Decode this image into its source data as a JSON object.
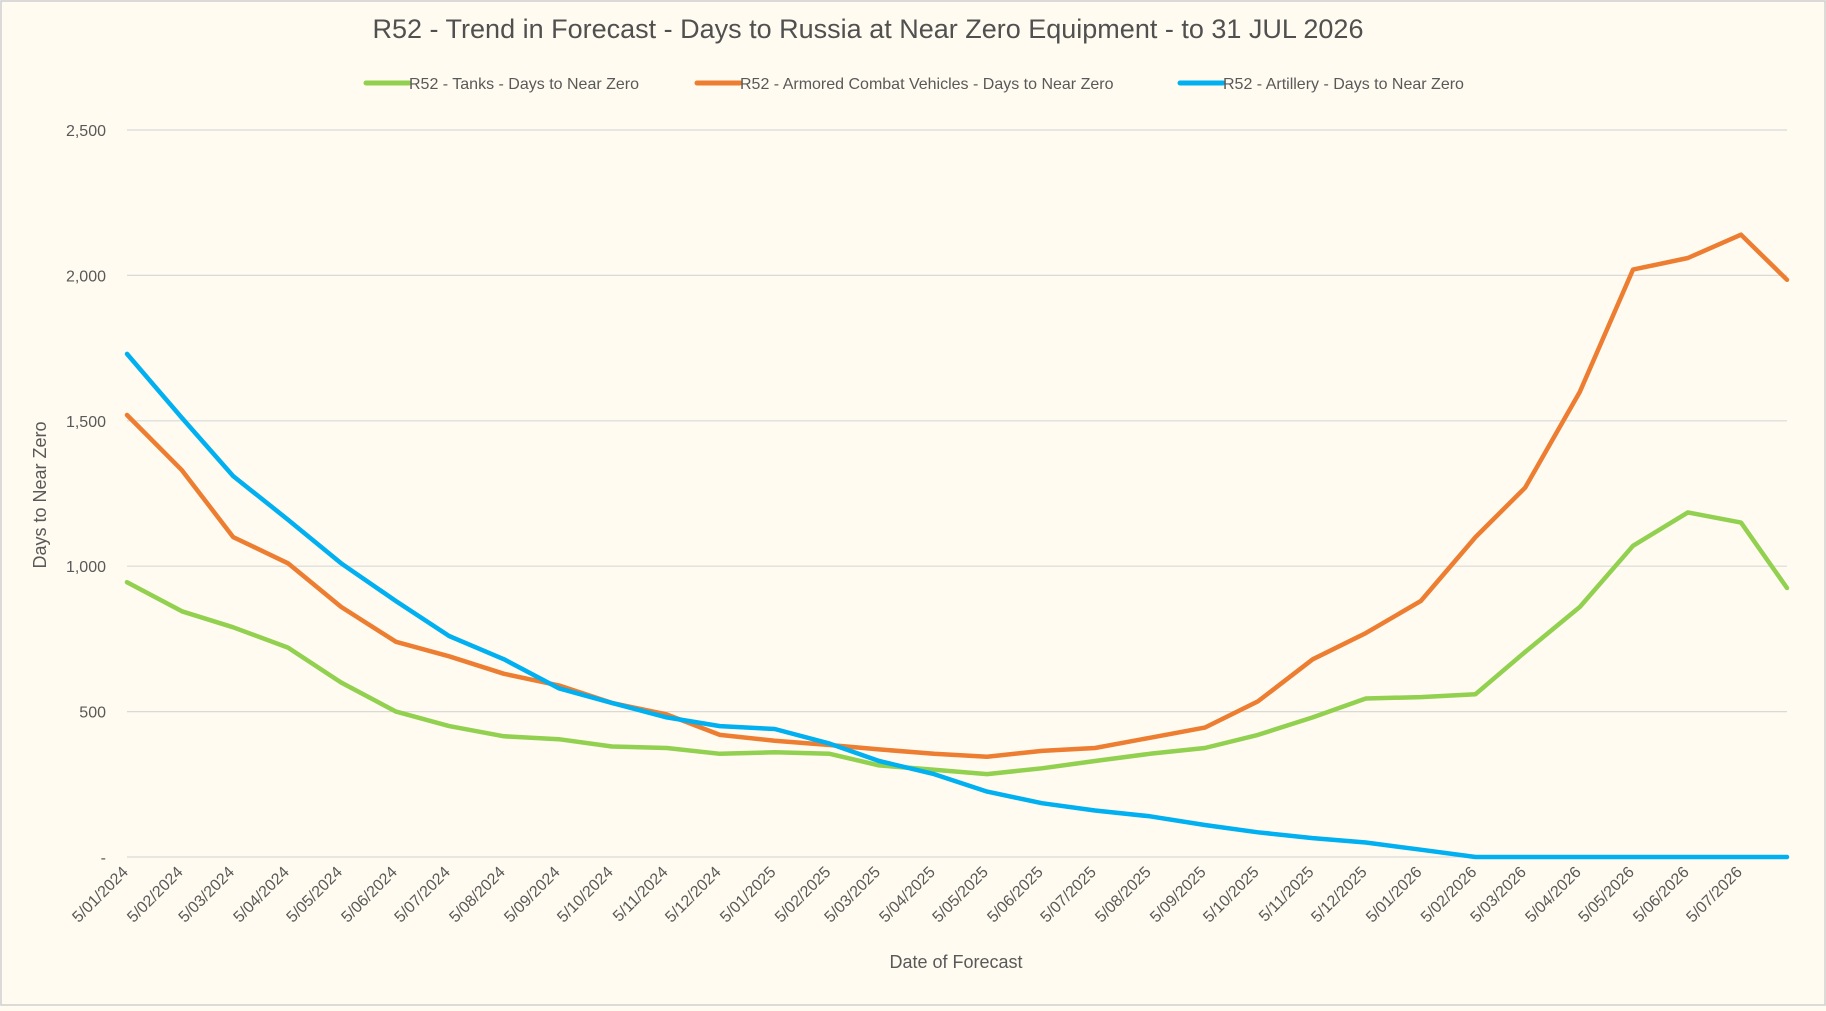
{
  "chart_data": {
    "type": "line",
    "title": "R52 - Trend in Forecast - Days to Russia at Near Zero Equipment - to 31 JUL 2026",
    "xlabel": "Date of Forecast",
    "ylabel": "Days to Near Zero",
    "ylim": [
      0,
      2500
    ],
    "yticks": [
      {
        "value": 0,
        "label": "-"
      },
      {
        "value": 500,
        "label": "500"
      },
      {
        "value": 1000,
        "label": "1,000"
      },
      {
        "value": 1500,
        "label": "1,500"
      },
      {
        "value": 2000,
        "label": "2,000"
      },
      {
        "value": 2500,
        "label": "2,500"
      }
    ],
    "x_tick_labels": [
      "5/01/2024",
      "5/02/2024",
      "5/03/2024",
      "5/04/2024",
      "5/05/2024",
      "5/06/2024",
      "5/07/2024",
      "5/08/2024",
      "5/09/2024",
      "5/10/2024",
      "5/11/2024",
      "5/12/2024",
      "5/01/2025",
      "5/02/2025",
      "5/03/2025",
      "5/04/2025",
      "5/05/2025",
      "5/06/2025",
      "5/07/2025",
      "5/08/2025",
      "5/09/2025",
      "5/10/2025",
      "5/11/2025",
      "5/12/2025",
      "5/01/2026",
      "5/02/2026",
      "5/03/2026",
      "5/04/2026",
      "5/05/2026",
      "5/06/2026",
      "5/07/2026"
    ],
    "x": [
      "2024-01-05",
      "2024-02-05",
      "2024-03-05",
      "2024-04-05",
      "2024-05-05",
      "2024-06-05",
      "2024-07-05",
      "2024-08-05",
      "2024-09-05",
      "2024-10-05",
      "2024-11-05",
      "2024-12-05",
      "2025-01-05",
      "2025-02-05",
      "2025-03-05",
      "2025-04-05",
      "2025-05-05",
      "2025-06-05",
      "2025-07-05",
      "2025-08-05",
      "2025-09-05",
      "2025-10-05",
      "2025-11-05",
      "2025-12-05",
      "2026-01-05",
      "2026-02-05",
      "2026-03-05",
      "2026-04-05",
      "2026-05-05",
      "2026-06-05",
      "2026-07-05",
      "2026-07-31"
    ],
    "grid": true,
    "legend_position": "top",
    "series": [
      {
        "name": "R52 - Tanks - Days to Near Zero",
        "color": "#92d050",
        "values": [
          945,
          845,
          790,
          720,
          600,
          500,
          450,
          415,
          405,
          380,
          375,
          355,
          360,
          355,
          315,
          300,
          285,
          305,
          330,
          355,
          375,
          420,
          480,
          545,
          550,
          560,
          705,
          860,
          1070,
          1185,
          1150,
          925
        ]
      },
      {
        "name": "R52 - Armored Combat Vehicles - Days to Near Zero",
        "color": "#ed7d31",
        "values": [
          1520,
          1330,
          1100,
          1010,
          860,
          740,
          690,
          630,
          590,
          530,
          490,
          420,
          400,
          385,
          370,
          355,
          345,
          365,
          375,
          410,
          445,
          535,
          680,
          770,
          880,
          1100,
          1270,
          1600,
          2020,
          2060,
          2140,
          1985
        ]
      },
      {
        "name": "R52 - Artillery - Days to Near Zero",
        "color": "#00b0f0",
        "values": [
          1730,
          1510,
          1310,
          1160,
          1010,
          880,
          760,
          680,
          580,
          530,
          480,
          450,
          440,
          390,
          330,
          285,
          225,
          185,
          160,
          140,
          110,
          85,
          65,
          50,
          25,
          0,
          0,
          0,
          0,
          0,
          0,
          0
        ]
      }
    ]
  }
}
